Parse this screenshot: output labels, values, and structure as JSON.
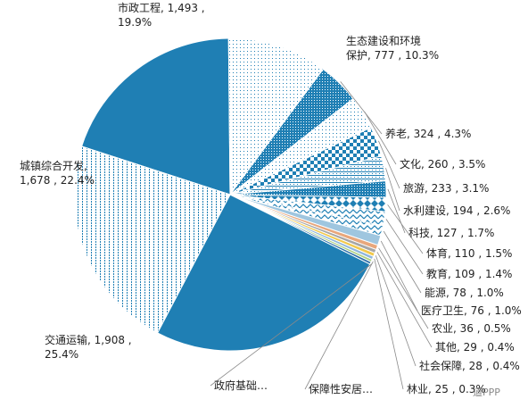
{
  "chart_data": {
    "type": "pie",
    "title": "",
    "slices": [
      {
        "label": "市政工程",
        "value": 1493,
        "percent": "19.9%",
        "color": "#1f7fb4",
        "pattern": "solid"
      },
      {
        "label": "生态建设和环境保护",
        "value": 777,
        "percent": "10.3%",
        "color": "#1f7fb4",
        "pattern": "fine-dots"
      },
      {
        "label": "养老",
        "value": 324,
        "percent": "4.3%",
        "color": "#1f7fb4",
        "pattern": "dense-dots"
      },
      {
        "label": "文化",
        "value": 260,
        "percent": "3.5%",
        "color": "#1f7fb4",
        "pattern": "fine-dots"
      },
      {
        "label": "旅游",
        "value": 233,
        "percent": "3.1%",
        "color": "#1f7fb4",
        "pattern": "checker"
      },
      {
        "label": "水利建设",
        "value": 194,
        "percent": "2.6%",
        "color": "#1f7fb4",
        "pattern": "hlines"
      },
      {
        "label": "科技",
        "value": 127,
        "percent": "1.7%",
        "color": "#1f7fb4",
        "pattern": "dense-dots"
      },
      {
        "label": "体育",
        "value": 110,
        "percent": "1.5%",
        "color": "#1f7fb4",
        "pattern": "diamonds"
      },
      {
        "label": "教育",
        "value": 109,
        "percent": "1.4%",
        "color": "#1f7fb4",
        "pattern": "zigzag"
      },
      {
        "label": "能源",
        "value": 78,
        "percent": "1.0%",
        "color": "#1f7fb4",
        "pattern": "zigzag"
      },
      {
        "label": "医疗卫生",
        "value": 76,
        "percent": "1.0%",
        "color": "#9fc6df",
        "pattern": "solid"
      },
      {
        "label": "农业",
        "value": 36,
        "percent": "0.5%",
        "color": "#e8a77c",
        "pattern": "solid"
      },
      {
        "label": "其他",
        "value": 29,
        "percent": "0.4%",
        "color": "#a6a6a6",
        "pattern": "solid"
      },
      {
        "label": "社会保障",
        "value": 28,
        "percent": "0.4%",
        "color": "#f2c94c",
        "pattern": "solid"
      },
      {
        "label": "林业",
        "value": 25,
        "percent": "0.3%",
        "color": "#8fb7dc",
        "pattern": "solid"
      },
      {
        "label": "保障性安居…",
        "value": 20,
        "percent": "",
        "color": "#a9cf7f",
        "pattern": "solid"
      },
      {
        "label": "政府基础…",
        "value": 20,
        "percent": "",
        "color": "#2f6fa8",
        "pattern": "solid"
      },
      {
        "label": "交通运输",
        "value": 1908,
        "percent": "25.4%",
        "color": "#1f7fb4",
        "pattern": "solid"
      },
      {
        "label": "城镇综合开发",
        "value": 1678,
        "percent": "22.4%",
        "color": "#1f7fb4",
        "pattern": "vdots"
      }
    ],
    "label_lines": [
      {
        "id": "shizheng",
        "l1": "市政工程, 1,493 ,",
        "l2": "19.9%"
      },
      {
        "id": "shengtai",
        "l1": "生态建设和环境",
        "l2": "保护, 777 , 10.3%"
      },
      {
        "id": "yanglao",
        "l1": "养老, 324 , 4.3%"
      },
      {
        "id": "wenhua",
        "l1": "文化, 260 , 3.5%"
      },
      {
        "id": "lvyou",
        "l1": "旅游, 233 , 3.1%"
      },
      {
        "id": "shuili",
        "l1": "水利建设, 194 , 2.6%"
      },
      {
        "id": "keji",
        "l1": "科技, 127 , 1.7%"
      },
      {
        "id": "tiyu",
        "l1": "体育, 110 , 1.5%"
      },
      {
        "id": "jiaoyu",
        "l1": "教育, 109 , 1.4%"
      },
      {
        "id": "nengyuan",
        "l1": "能源, 78 , 1.0%"
      },
      {
        "id": "yiliao",
        "l1": "医疗卫生, 76 , 1.0%"
      },
      {
        "id": "nongye",
        "l1": "农业, 36 , 0.5%"
      },
      {
        "id": "qita",
        "l1": "其他, 29 , 0.4%"
      },
      {
        "id": "shehui",
        "l1": "社会保障, 28 , 0.4%"
      },
      {
        "id": "linye",
        "l1": "林业, 25 , 0.3%"
      },
      {
        "id": "baozhang",
        "l1": "保障性安居…"
      },
      {
        "id": "zhengfu",
        "l1": "政府基础…"
      },
      {
        "id": "jiaotong",
        "l1": "交通运输, 1,908 ,",
        "l2": "25.4%"
      },
      {
        "id": "chengzhen",
        "l1": "城镇综合开发,",
        "l2": "1,678 , 22.4%"
      }
    ],
    "legend": "none",
    "grid": false
  },
  "watermark": "道PPP"
}
